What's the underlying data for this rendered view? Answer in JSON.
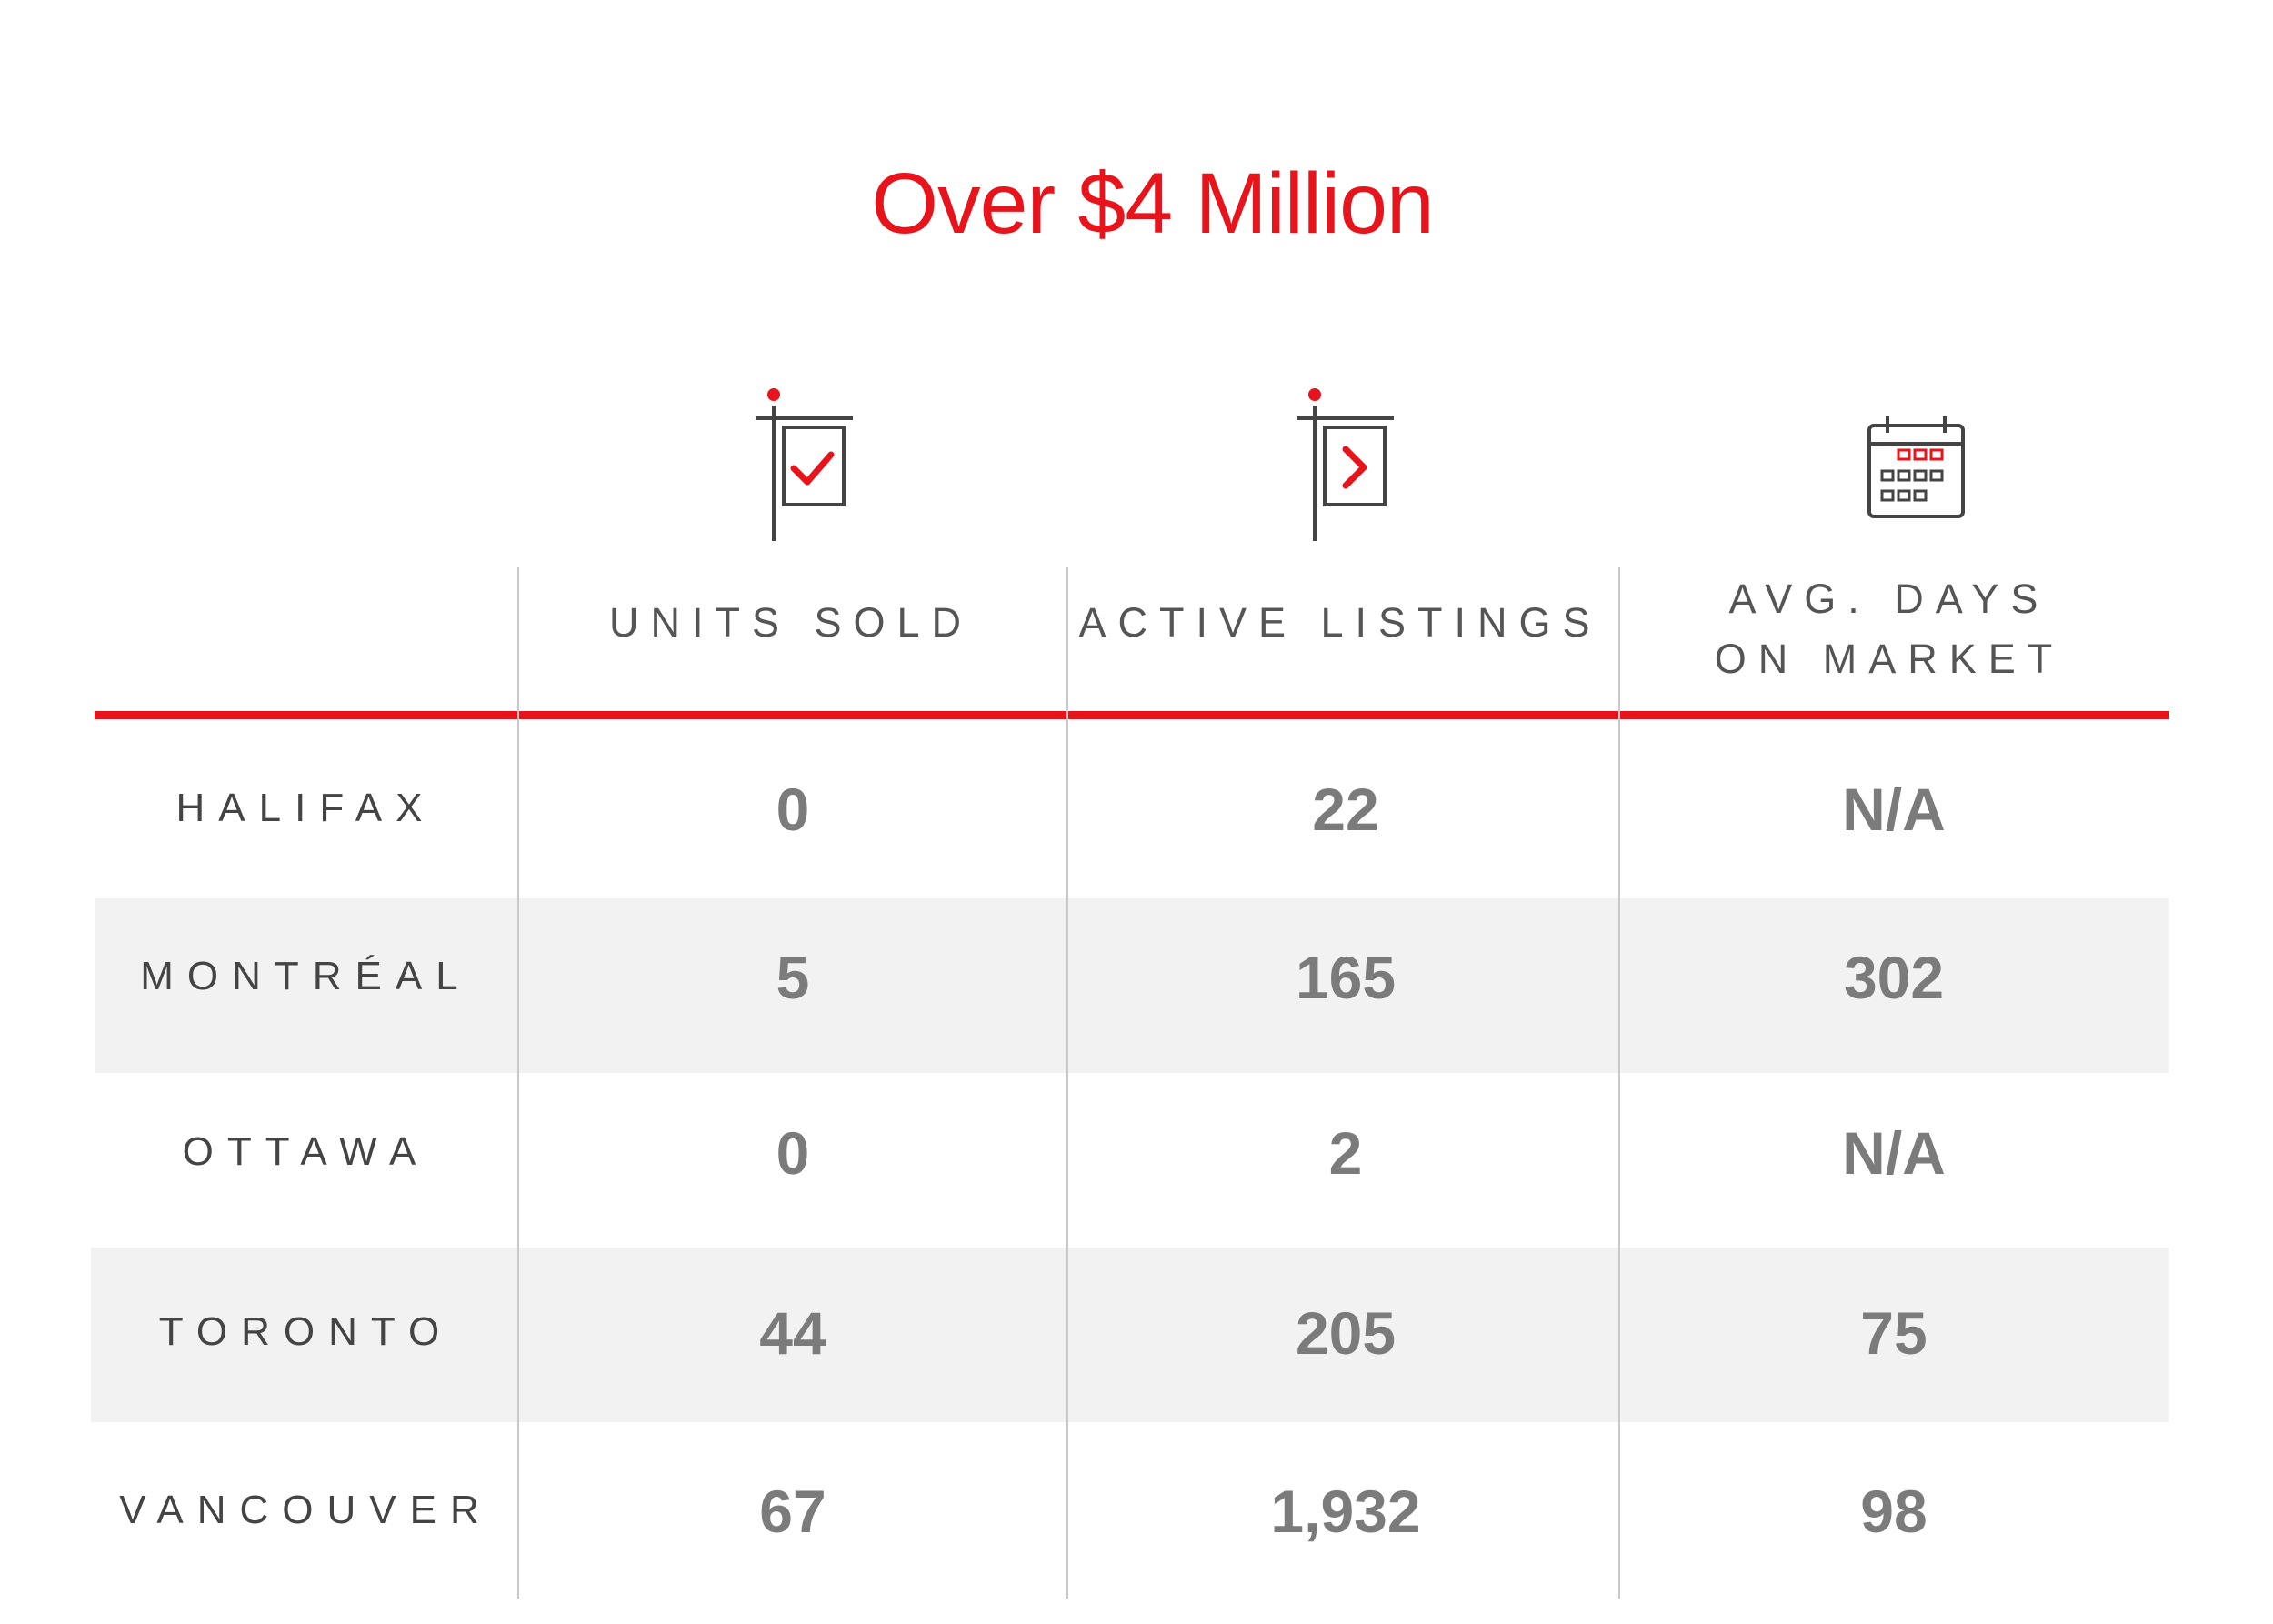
{
  "title": "Over $4 Million",
  "colors": {
    "accent": "#e8141c",
    "value_text": "#7b7b7b",
    "label_text": "#444444",
    "band": "#f2f2f2",
    "grid": "#c9c9c9"
  },
  "icons": [
    "sold-sign-icon",
    "listing-sign-icon",
    "calendar-icon"
  ],
  "chart_data": {
    "type": "table",
    "title": "Over $4 Million",
    "columns": [
      "UNITS SOLD",
      "ACTIVE LISTINGS",
      "AVG. DAYS ON MARKET"
    ],
    "column_lines": [
      [
        "UNITS SOLD"
      ],
      [
        "ACTIVE LISTINGS"
      ],
      [
        "AVG. DAYS",
        "ON MARKET"
      ]
    ],
    "rows": [
      {
        "city": "HALIFAX",
        "values": [
          "0",
          "22",
          "N/A"
        ]
      },
      {
        "city": "MONTRÉAL",
        "values": [
          "5",
          "165",
          "302"
        ]
      },
      {
        "city": "OTTAWA",
        "values": [
          "0",
          "2",
          "N/A"
        ]
      },
      {
        "city": "TORONTO",
        "values": [
          "44",
          "205",
          "75"
        ]
      },
      {
        "city": "VANCOUVER",
        "values": [
          "67",
          "1,932",
          "98"
        ]
      }
    ]
  }
}
